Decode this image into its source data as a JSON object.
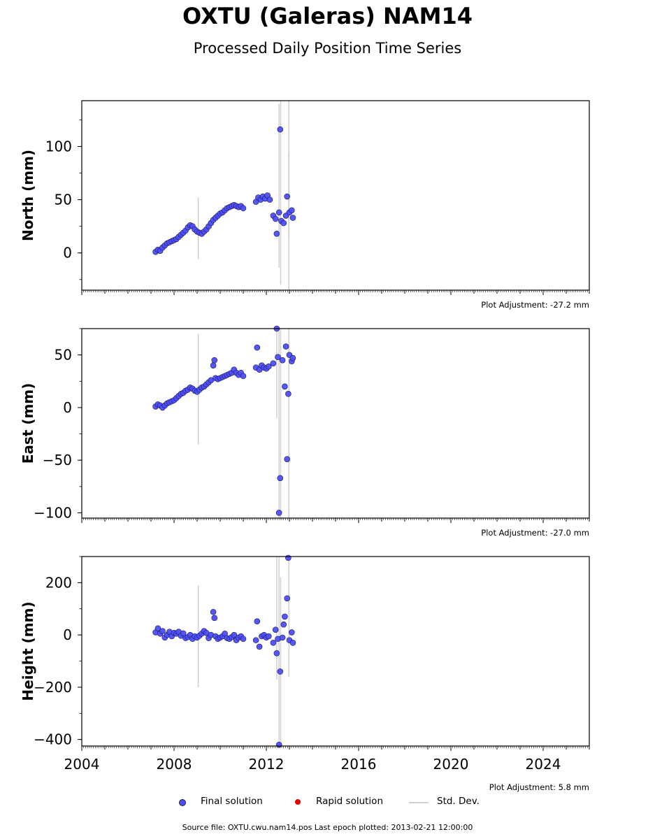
{
  "header": {
    "title": "OXTU (Galeras) NAM14",
    "subtitle": "Processed Daily Position Time Series"
  },
  "chart_data": [
    {
      "type": "scatter",
      "ylabel": "North (mm)",
      "ylim": [
        -35,
        143
      ],
      "yticks": [
        {
          "value": 0,
          "label": "0"
        },
        {
          "value": 50,
          "label": "50"
        },
        {
          "value": 100,
          "label": "100"
        }
      ],
      "y_minor_step": 25,
      "xlim": [
        2004.0,
        2026.0
      ],
      "adjustment": "Plot Adjustment: -27.2 mm",
      "series": [
        {
          "name": "Final solution",
          "color": "#4d4dff",
          "points": [
            [
              2007.2,
              1
            ],
            [
              2007.3,
              3
            ],
            [
              2007.4,
              2
            ],
            [
              2007.5,
              5
            ],
            [
              2007.6,
              7
            ],
            [
              2007.7,
              9
            ],
            [
              2007.8,
              10
            ],
            [
              2007.9,
              11
            ],
            [
              2008.0,
              12
            ],
            [
              2008.1,
              13
            ],
            [
              2008.2,
              15
            ],
            [
              2008.3,
              17
            ],
            [
              2008.4,
              19
            ],
            [
              2008.5,
              21
            ],
            [
              2008.6,
              24
            ],
            [
              2008.7,
              26
            ],
            [
              2008.8,
              25
            ],
            [
              2008.9,
              22
            ],
            [
              2009.0,
              20
            ],
            [
              2009.1,
              19
            ],
            [
              2009.2,
              18
            ],
            [
              2009.3,
              20
            ],
            [
              2009.4,
              22
            ],
            [
              2009.5,
              25
            ],
            [
              2009.6,
              28
            ],
            [
              2009.7,
              31
            ],
            [
              2009.8,
              33
            ],
            [
              2009.9,
              35
            ],
            [
              2010.0,
              37
            ],
            [
              2010.1,
              38
            ],
            [
              2010.2,
              40
            ],
            [
              2010.3,
              42
            ],
            [
              2010.4,
              43
            ],
            [
              2010.5,
              44
            ],
            [
              2010.6,
              45
            ],
            [
              2010.7,
              44
            ],
            [
              2010.8,
              43
            ],
            [
              2010.9,
              44
            ],
            [
              2011.0,
              42
            ],
            [
              2011.55,
              48
            ],
            [
              2011.65,
              52
            ],
            [
              2011.75,
              50
            ],
            [
              2011.85,
              53
            ],
            [
              2011.95,
              51
            ],
            [
              2012.05,
              54
            ],
            [
              2012.15,
              50
            ],
            [
              2012.3,
              35
            ],
            [
              2012.4,
              32
            ],
            [
              2012.45,
              18
            ],
            [
              2012.55,
              38
            ],
            [
              2012.6,
              116
            ],
            [
              2012.65,
              30
            ],
            [
              2012.75,
              28
            ],
            [
              2012.85,
              35
            ],
            [
              2012.9,
              53
            ],
            [
              2013.0,
              38
            ],
            [
              2013.1,
              40
            ],
            [
              2013.15,
              33
            ]
          ]
        },
        {
          "name": "Rapid solution",
          "color": "#e60000",
          "points": []
        }
      ],
      "errorbars": [
        {
          "x": 2009.05,
          "low": -6,
          "high": 52
        },
        {
          "x": 2012.55,
          "low": -14,
          "high": 140
        },
        {
          "x": 2012.62,
          "low": -30,
          "high": 143
        },
        {
          "x": 2012.97,
          "low": 14,
          "high": 94
        },
        {
          "x": 2012.98,
          "low": -35,
          "high": 143
        }
      ]
    },
    {
      "type": "scatter",
      "ylabel": "East (mm)",
      "ylim": [
        -105,
        75
      ],
      "yticks": [
        {
          "value": -100,
          "label": "−100"
        },
        {
          "value": -50,
          "label": "−50"
        },
        {
          "value": 0,
          "label": "0"
        },
        {
          "value": 50,
          "label": "50"
        }
      ],
      "y_minor_step": 25,
      "xlim": [
        2004.0,
        2026.0
      ],
      "adjustment": "Plot Adjustment: -27.0 mm",
      "series": [
        {
          "name": "Final solution",
          "color": "#4d4dff",
          "points": [
            [
              2007.2,
              1
            ],
            [
              2007.3,
              3
            ],
            [
              2007.4,
              2
            ],
            [
              2007.5,
              0
            ],
            [
              2007.6,
              2
            ],
            [
              2007.7,
              4
            ],
            [
              2007.8,
              5
            ],
            [
              2007.9,
              6
            ],
            [
              2008.0,
              7
            ],
            [
              2008.1,
              9
            ],
            [
              2008.2,
              11
            ],
            [
              2008.3,
              13
            ],
            [
              2008.4,
              14
            ],
            [
              2008.5,
              16
            ],
            [
              2008.6,
              17
            ],
            [
              2008.7,
              19
            ],
            [
              2008.8,
              18
            ],
            [
              2008.9,
              16
            ],
            [
              2009.0,
              15
            ],
            [
              2009.1,
              17
            ],
            [
              2009.2,
              19
            ],
            [
              2009.3,
              20
            ],
            [
              2009.4,
              22
            ],
            [
              2009.5,
              24
            ],
            [
              2009.6,
              26
            ],
            [
              2009.7,
              40
            ],
            [
              2009.75,
              45
            ],
            [
              2009.8,
              28
            ],
            [
              2009.9,
              27
            ],
            [
              2010.0,
              28
            ],
            [
              2010.1,
              29
            ],
            [
              2010.2,
              30
            ],
            [
              2010.3,
              31
            ],
            [
              2010.4,
              32
            ],
            [
              2010.5,
              33
            ],
            [
              2010.6,
              36
            ],
            [
              2010.7,
              33
            ],
            [
              2010.8,
              31
            ],
            [
              2010.9,
              33
            ],
            [
              2011.0,
              30
            ],
            [
              2011.55,
              38
            ],
            [
              2011.6,
              57
            ],
            [
              2011.7,
              36
            ],
            [
              2011.8,
              40
            ],
            [
              2011.9,
              38
            ],
            [
              2012.0,
              37
            ],
            [
              2012.1,
              39
            ],
            [
              2012.3,
              42
            ],
            [
              2012.45,
              75
            ],
            [
              2012.5,
              48
            ],
            [
              2012.55,
              -100
            ],
            [
              2012.6,
              -67
            ],
            [
              2012.7,
              45
            ],
            [
              2012.8,
              20
            ],
            [
              2012.85,
              58
            ],
            [
              2012.9,
              -49
            ],
            [
              2012.95,
              13
            ],
            [
              2013.0,
              50
            ],
            [
              2013.1,
              44
            ],
            [
              2013.15,
              47
            ]
          ]
        },
        {
          "name": "Rapid solution",
          "color": "#e60000",
          "points": []
        }
      ],
      "errorbars": [
        {
          "x": 2009.05,
          "low": -35,
          "high": 70
        },
        {
          "x": 2012.45,
          "low": -10,
          "high": 75
        },
        {
          "x": 2012.55,
          "low": -105,
          "high": 75
        },
        {
          "x": 2012.62,
          "low": -105,
          "high": 75
        },
        {
          "x": 2012.98,
          "low": -105,
          "high": 75
        }
      ]
    },
    {
      "type": "scatter",
      "ylabel": "Height (mm)",
      "ylim": [
        -425,
        300
      ],
      "yticks": [
        {
          "value": -400,
          "label": "−400"
        },
        {
          "value": -200,
          "label": "−200"
        },
        {
          "value": 0,
          "label": "0"
        },
        {
          "value": 200,
          "label": "200"
        }
      ],
      "y_minor_step": 100,
      "xlim": [
        2004.0,
        2026.0
      ],
      "xticks": [
        {
          "value": 2004,
          "label": "2004"
        },
        {
          "value": 2008,
          "label": "2008"
        },
        {
          "value": 2012,
          "label": "2012"
        },
        {
          "value": 2016,
          "label": "2016"
        },
        {
          "value": 2020,
          "label": "2020"
        },
        {
          "value": 2024,
          "label": "2024"
        }
      ],
      "adjustment": "Plot Adjustment: 5.8 mm",
      "series": [
        {
          "name": "Final solution",
          "color": "#4d4dff",
          "points": [
            [
              2007.2,
              10
            ],
            [
              2007.3,
              25
            ],
            [
              2007.4,
              5
            ],
            [
              2007.5,
              15
            ],
            [
              2007.6,
              -10
            ],
            [
              2007.7,
              0
            ],
            [
              2007.8,
              12
            ],
            [
              2007.9,
              -5
            ],
            [
              2008.0,
              8
            ],
            [
              2008.1,
              5
            ],
            [
              2008.2,
              12
            ],
            [
              2008.3,
              -3
            ],
            [
              2008.4,
              6
            ],
            [
              2008.5,
              -12
            ],
            [
              2008.6,
              -8
            ],
            [
              2008.7,
              0
            ],
            [
              2008.8,
              -15
            ],
            [
              2008.9,
              -5
            ],
            [
              2009.0,
              -10
            ],
            [
              2009.1,
              -3
            ],
            [
              2009.2,
              5
            ],
            [
              2009.3,
              15
            ],
            [
              2009.4,
              8
            ],
            [
              2009.5,
              -12
            ],
            [
              2009.6,
              0
            ],
            [
              2009.7,
              88
            ],
            [
              2009.75,
              65
            ],
            [
              2009.8,
              -5
            ],
            [
              2009.9,
              -15
            ],
            [
              2010.0,
              -10
            ],
            [
              2010.1,
              -5
            ],
            [
              2010.2,
              5
            ],
            [
              2010.3,
              -12
            ],
            [
              2010.4,
              -15
            ],
            [
              2010.5,
              -8
            ],
            [
              2010.6,
              0
            ],
            [
              2010.7,
              -20
            ],
            [
              2010.8,
              -10
            ],
            [
              2010.9,
              -5
            ],
            [
              2011.0,
              -15
            ],
            [
              2011.55,
              -20
            ],
            [
              2011.6,
              52
            ],
            [
              2011.7,
              -45
            ],
            [
              2011.8,
              -5
            ],
            [
              2011.9,
              0
            ],
            [
              2012.0,
              -10
            ],
            [
              2012.1,
              -5
            ],
            [
              2012.3,
              -30
            ],
            [
              2012.4,
              20
            ],
            [
              2012.45,
              -70
            ],
            [
              2012.5,
              -15
            ],
            [
              2012.55,
              -420
            ],
            [
              2012.6,
              -140
            ],
            [
              2012.7,
              -10
            ],
            [
              2012.75,
              40
            ],
            [
              2012.8,
              70
            ],
            [
              2012.9,
              140
            ],
            [
              2012.95,
              295
            ],
            [
              2013.0,
              -20
            ],
            [
              2013.1,
              10
            ],
            [
              2013.15,
              -30
            ]
          ]
        },
        {
          "name": "Rapid solution",
          "color": "#e60000",
          "points": []
        }
      ],
      "errorbars": [
        {
          "x": 2009.05,
          "low": -200,
          "high": 190
        },
        {
          "x": 2012.45,
          "low": -170,
          "high": 300
        },
        {
          "x": 2012.55,
          "low": -425,
          "high": 300
        },
        {
          "x": 2012.62,
          "low": -425,
          "high": 220
        },
        {
          "x": 2012.98,
          "low": -160,
          "high": 300
        }
      ]
    }
  ],
  "legend": {
    "final": "Final solution",
    "rapid": "Rapid solution",
    "stddev": "Std. Dev.",
    "final_color": "#4d4dff",
    "rapid_color": "#e60000",
    "stddev_color": "#d0d0d0"
  },
  "footer": {
    "source": "Source file: OXTU.cwu.nam14.pos  Last epoch plotted: 2013-02-21 12:00:00"
  }
}
